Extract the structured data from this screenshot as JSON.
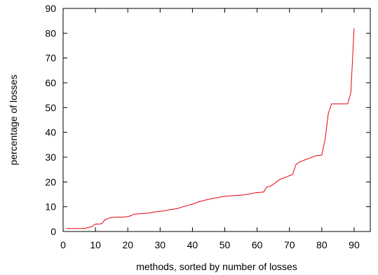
{
  "chart_data": {
    "type": "line",
    "title": "",
    "xlabel": "methods, sorted by number of losses",
    "ylabel": "percentage of losses",
    "xlim": [
      0,
      95
    ],
    "ylim": [
      0,
      90
    ],
    "xticks": [
      0,
      10,
      20,
      30,
      40,
      50,
      60,
      70,
      80,
      90
    ],
    "yticks": [
      0,
      10,
      20,
      30,
      40,
      50,
      60,
      70,
      80,
      90
    ],
    "grid": false,
    "legend": "none",
    "series": [
      {
        "color": "#e8000b",
        "x": [
          1,
          2,
          3,
          4,
          5,
          6,
          7,
          8,
          9,
          10,
          11,
          12,
          13,
          14,
          15,
          16,
          17,
          18,
          19,
          20,
          21,
          22,
          23,
          24,
          25,
          26,
          27,
          28,
          29,
          30,
          31,
          32,
          33,
          34,
          35,
          36,
          37,
          38,
          39,
          40,
          41,
          42,
          43,
          44,
          45,
          46,
          47,
          48,
          49,
          50,
          51,
          52,
          53,
          54,
          55,
          56,
          57,
          58,
          59,
          60,
          61,
          62,
          63,
          64,
          65,
          66,
          67,
          68,
          69,
          70,
          71,
          72,
          73,
          74,
          75,
          76,
          77,
          78,
          79,
          80,
          81,
          82,
          83,
          84,
          85,
          86,
          87,
          88,
          89,
          90
        ],
        "y": [
          1.2,
          1.2,
          1.2,
          1.2,
          1.2,
          1.2,
          1.3,
          1.7,
          2.0,
          3.0,
          3.0,
          3.2,
          4.8,
          5.3,
          5.7,
          5.7,
          5.8,
          5.8,
          5.9,
          6.0,
          6.4,
          7.0,
          7.1,
          7.2,
          7.3,
          7.4,
          7.5,
          7.8,
          8.0,
          8.2,
          8.3,
          8.5,
          8.8,
          9.0,
          9.2,
          9.5,
          10.0,
          10.3,
          10.7,
          11.0,
          11.5,
          12.0,
          12.3,
          12.7,
          13.0,
          13.3,
          13.5,
          13.7,
          14.0,
          14.2,
          14.3,
          14.4,
          14.5,
          14.6,
          14.7,
          14.8,
          15.0,
          15.2,
          15.5,
          15.7,
          15.8,
          15.9,
          18.0,
          18.2,
          19.0,
          20.0,
          21.0,
          21.5,
          22.0,
          22.5,
          23.0,
          27.0,
          28.0,
          28.5,
          29.0,
          29.5,
          30.0,
          30.5,
          30.7,
          30.8,
          37.0,
          47.5,
          51.5,
          51.5,
          51.5,
          51.5,
          51.5,
          51.5,
          56.0,
          82.0
        ]
      }
    ]
  }
}
